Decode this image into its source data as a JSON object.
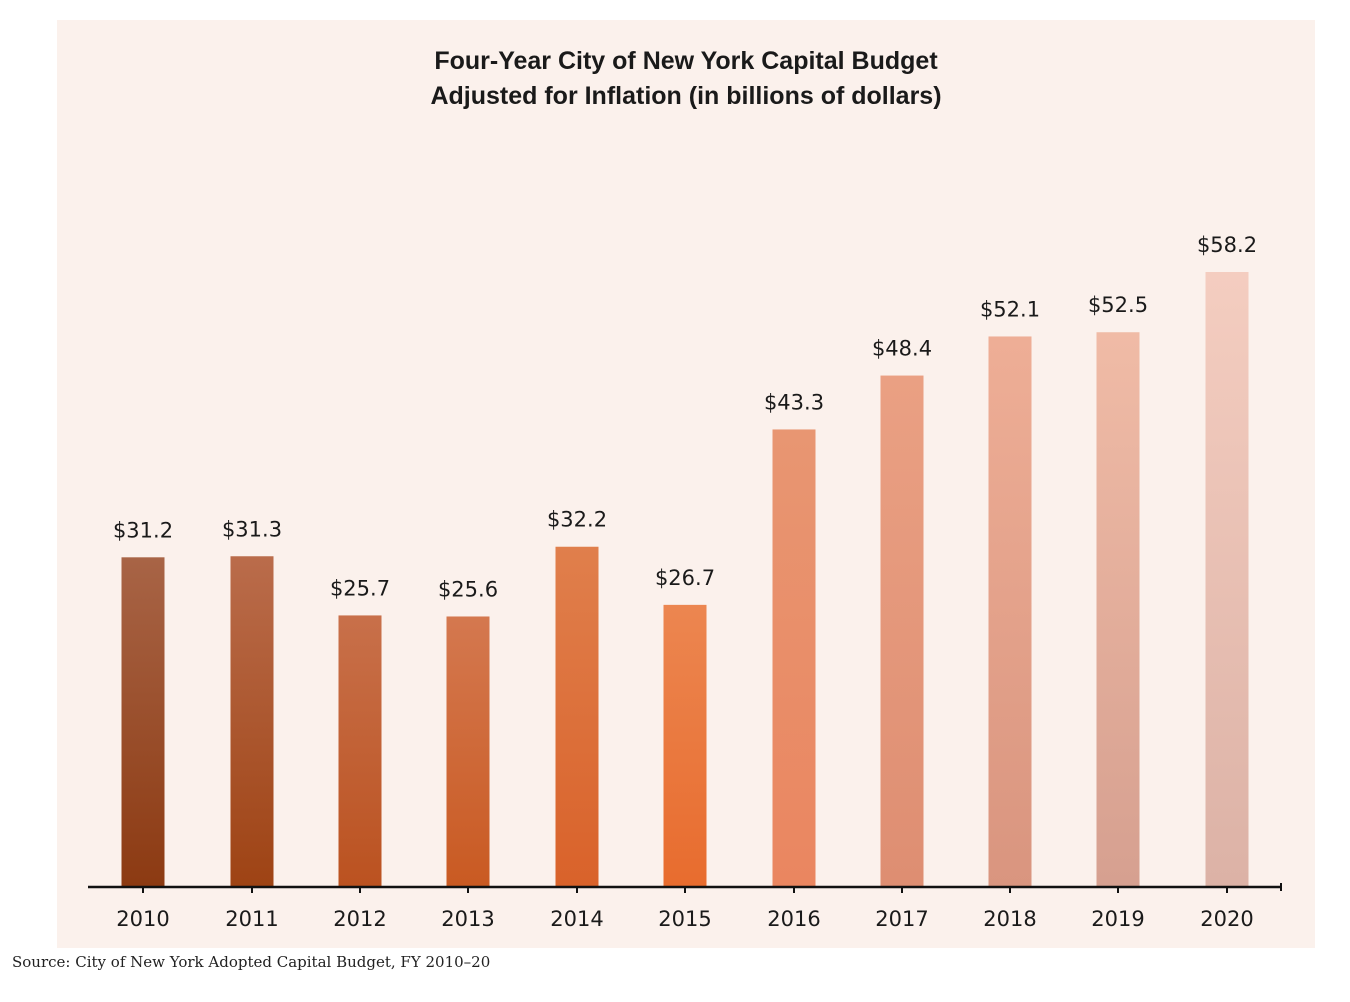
{
  "chart_data": {
    "type": "bar",
    "title_line1": "Four-Year City of New York Capital Budget",
    "title_line2": "Adjusted for Inflation (in billions of dollars)",
    "categories": [
      "2010",
      "2011",
      "2012",
      "2013",
      "2014",
      "2015",
      "2016",
      "2017",
      "2018",
      "2019",
      "2020"
    ],
    "values": [
      31.2,
      31.3,
      25.7,
      25.6,
      32.2,
      26.7,
      43.3,
      48.4,
      52.1,
      52.5,
      58.2
    ],
    "labels": [
      "$31.2",
      "$31.3",
      "$25.7",
      "$25.6",
      "$32.2",
      "$26.7",
      "$43.3",
      "$48.4",
      "$52.1",
      "$52.5",
      "$58.2"
    ],
    "xlabel": "",
    "ylabel": "",
    "ylim": [
      0,
      58.2
    ],
    "grid": false,
    "legend": "none",
    "colors": {
      "top": [
        "#a86446",
        "#ba6c4b",
        "#c8704a",
        "#d4784f",
        "#e07f4c",
        "#ec8650",
        "#e89672",
        "#eaa083",
        "#eeae96",
        "#f0bba6",
        "#f4cdc0"
      ],
      "bottom": [
        "#8c3a12",
        "#9e4314",
        "#bb5220",
        "#c95a22",
        "#d9622a",
        "#e86c2e",
        "#ea8660",
        "#de8e72",
        "#d9957f",
        "#d6a090",
        "#dcb2a6"
      ]
    }
  },
  "source": "Source: City of New York Adopted Capital Budget, FY 2010–20"
}
